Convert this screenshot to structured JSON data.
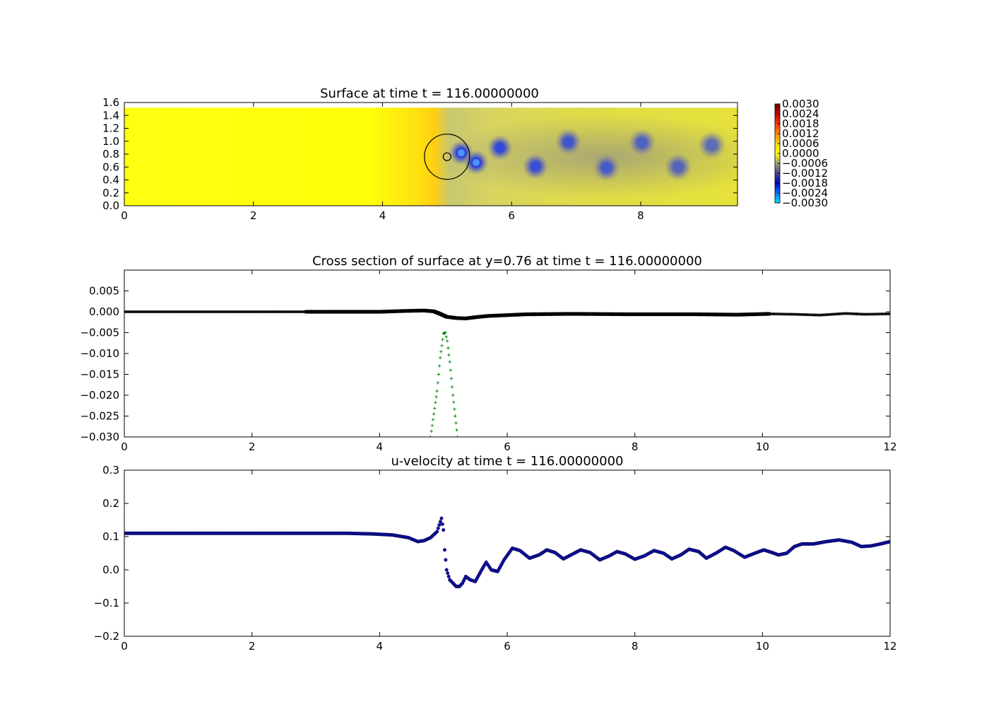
{
  "chart_data": [
    {
      "type": "heatmap",
      "title": "Surface at time t =   116.00000000",
      "xlim": [
        0,
        9.5
      ],
      "ylim": [
        0,
        1.6
      ],
      "domain_y_top": 1.52,
      "xticks": [
        0,
        2,
        4,
        6,
        8
      ],
      "xtick_labels": [
        "0",
        "2",
        "4",
        "6",
        "8"
      ],
      "yticks": [
        0.0,
        0.2,
        0.4,
        0.6,
        0.8,
        1.0,
        1.2,
        1.4,
        1.6
      ],
      "ytick_labels": [
        "0.0",
        "0.2",
        "0.4",
        "0.6",
        "0.8",
        "1.0",
        "1.2",
        "1.4",
        "1.6"
      ],
      "colormap": {
        "min": -0.003,
        "max": 0.003,
        "stops": [
          {
            "value": -0.003,
            "color": "#00e5ff"
          },
          {
            "value": -0.0024,
            "color": "#0070ff"
          },
          {
            "value": -0.0018,
            "color": "#0000cc"
          },
          {
            "value": -0.0012,
            "color": "#4a4a86"
          },
          {
            "value": -0.0006,
            "color": "#9c9c7e"
          },
          {
            "value": 0.0,
            "color": "#ffff00"
          },
          {
            "value": 0.0006,
            "color": "#ffd400"
          },
          {
            "value": 0.0012,
            "color": "#ff8800"
          },
          {
            "value": 0.0018,
            "color": "#ff3300"
          },
          {
            "value": 0.0024,
            "color": "#cc0000"
          },
          {
            "value": 0.003,
            "color": "#660000"
          }
        ],
        "tick_labels": [
          "0.0030",
          "0.0024",
          "0.0018",
          "0.0012",
          "0.0006",
          "0.0000",
          "−0.0006",
          "−0.0012",
          "−0.0018",
          "−0.0024",
          "−0.0030"
        ]
      },
      "vortices": [
        {
          "x": 5.22,
          "y": 0.82,
          "value": -0.0026
        },
        {
          "x": 5.45,
          "y": 0.67,
          "value": -0.0026
        },
        {
          "x": 5.82,
          "y": 0.9,
          "value": -0.0022
        },
        {
          "x": 6.37,
          "y": 0.61,
          "value": -0.002
        },
        {
          "x": 6.88,
          "y": 0.99,
          "value": -0.0017
        },
        {
          "x": 7.47,
          "y": 0.59,
          "value": -0.0015
        },
        {
          "x": 8.02,
          "y": 0.98,
          "value": -0.0013
        },
        {
          "x": 8.58,
          "y": 0.6,
          "value": -0.0012
        },
        {
          "x": 9.1,
          "y": 0.94,
          "value": -0.0011
        }
      ],
      "cylinder": {
        "x": 5.0,
        "y": 0.76,
        "radius": 0.35
      },
      "inner_marker": {
        "x": 5.0,
        "y": 0.76,
        "radius": 0.06
      }
    },
    {
      "type": "line",
      "title": "Cross section of surface at y=0.76 at time t =   116.00000000",
      "xlim": [
        0,
        12
      ],
      "ylim": [
        -0.03,
        0.01
      ],
      "xticks": [
        0,
        2,
        4,
        6,
        8,
        10,
        12
      ],
      "xtick_labels": [
        "0",
        "2",
        "4",
        "6",
        "8",
        "10",
        "12"
      ],
      "yticks": [
        -0.03,
        -0.025,
        -0.02,
        -0.015,
        -0.01,
        -0.005,
        0.0,
        0.005
      ],
      "ytick_labels": [
        "−0.030",
        "−0.025",
        "−0.020",
        "−0.015",
        "−0.010",
        "−0.005",
        "0.000",
        "0.005"
      ],
      "series": [
        {
          "color": "#000000",
          "marker": "x",
          "points": [
            [
              0,
              0.0
            ],
            [
              1,
              0.0
            ],
            [
              2,
              0.0
            ],
            [
              2.85,
              0.0
            ],
            [
              3.5,
              0.0
            ],
            [
              4.0,
              0.0
            ],
            [
              4.4,
              0.0002
            ],
            [
              4.7,
              0.0003
            ],
            [
              4.85,
              0.0001
            ],
            [
              4.95,
              -0.0005
            ],
            [
              5.05,
              -0.0012
            ],
            [
              5.2,
              -0.0015
            ],
            [
              5.35,
              -0.0016
            ],
            [
              5.5,
              -0.0013
            ],
            [
              5.7,
              -0.001
            ],
            [
              6.0,
              -0.0008
            ],
            [
              6.3,
              -0.0006
            ],
            [
              7.0,
              -0.0005
            ],
            [
              8.0,
              -0.0006
            ],
            [
              9.0,
              -0.0006
            ],
            [
              9.6,
              -0.0007
            ],
            [
              10.1,
              -0.0005
            ],
            [
              10.5,
              -0.0006
            ],
            [
              10.9,
              -0.0008
            ],
            [
              11.3,
              -0.0004
            ],
            [
              11.6,
              -0.0006
            ],
            [
              12,
              -0.0005
            ]
          ]
        },
        {
          "color": "#008000",
          "marker": "+",
          "points": [
            [
              4.8,
              -0.03
            ],
            [
              4.9,
              -0.019
            ],
            [
              4.95,
              -0.011
            ],
            [
              5.0,
              -0.0052
            ],
            [
              5.03,
              -0.005
            ],
            [
              5.06,
              -0.007
            ],
            [
              5.1,
              -0.012
            ],
            [
              5.15,
              -0.02
            ],
            [
              5.22,
              -0.03
            ]
          ]
        }
      ]
    },
    {
      "type": "scatter",
      "title": "u-velocity at time t =   116.00000000",
      "xlim": [
        0,
        12
      ],
      "ylim": [
        -0.2,
        0.3
      ],
      "xticks": [
        0,
        2,
        4,
        6,
        8,
        10,
        12
      ],
      "xtick_labels": [
        "0",
        "2",
        "4",
        "6",
        "8",
        "10",
        "12"
      ],
      "yticks": [
        -0.2,
        -0.1,
        0.0,
        0.1,
        0.2,
        0.3
      ],
      "ytick_labels": [
        "−0.2",
        "−0.1",
        "0.0",
        "0.1",
        "0.2",
        "0.3"
      ],
      "series": [
        {
          "color": "#1010a0",
          "marker": "o",
          "points": [
            [
              0,
              0.11
            ],
            [
              2,
              0.11
            ],
            [
              3.5,
              0.11
            ],
            [
              3.9,
              0.108
            ],
            [
              4.2,
              0.105
            ],
            [
              4.45,
              0.097
            ],
            [
              4.6,
              0.085
            ],
            [
              4.7,
              0.088
            ],
            [
              4.8,
              0.097
            ],
            [
              4.9,
              0.115
            ],
            [
              4.97,
              0.155
            ],
            [
              5.0,
              0.12
            ],
            [
              5.02,
              0.06
            ],
            [
              5.05,
              0.0
            ],
            [
              5.1,
              -0.03
            ],
            [
              5.2,
              -0.05
            ],
            [
              5.25,
              -0.05
            ],
            [
              5.3,
              -0.04
            ],
            [
              5.35,
              -0.02
            ],
            [
              5.42,
              -0.03
            ],
            [
              5.5,
              -0.035
            ],
            [
              5.6,
              0.0
            ],
            [
              5.67,
              0.023
            ],
            [
              5.75,
              0.0
            ],
            [
              5.85,
              -0.005
            ],
            [
              5.95,
              0.03
            ],
            [
              6.08,
              0.065
            ],
            [
              6.2,
              0.058
            ],
            [
              6.35,
              0.035
            ],
            [
              6.5,
              0.045
            ],
            [
              6.62,
              0.06
            ],
            [
              6.75,
              0.052
            ],
            [
              6.88,
              0.033
            ],
            [
              7.0,
              0.045
            ],
            [
              7.15,
              0.06
            ],
            [
              7.3,
              0.052
            ],
            [
              7.45,
              0.03
            ],
            [
              7.6,
              0.042
            ],
            [
              7.72,
              0.055
            ],
            [
              7.85,
              0.048
            ],
            [
              8.0,
              0.032
            ],
            [
              8.15,
              0.042
            ],
            [
              8.3,
              0.058
            ],
            [
              8.45,
              0.05
            ],
            [
              8.58,
              0.033
            ],
            [
              8.72,
              0.045
            ],
            [
              8.85,
              0.062
            ],
            [
              9.0,
              0.055
            ],
            [
              9.12,
              0.035
            ],
            [
              9.27,
              0.05
            ],
            [
              9.42,
              0.068
            ],
            [
              9.55,
              0.058
            ],
            [
              9.72,
              0.038
            ],
            [
              9.88,
              0.05
            ],
            [
              10.02,
              0.06
            ],
            [
              10.15,
              0.052
            ],
            [
              10.25,
              0.045
            ],
            [
              10.38,
              0.05
            ],
            [
              10.5,
              0.07
            ],
            [
              10.62,
              0.078
            ],
            [
              10.8,
              0.078
            ],
            [
              11.0,
              0.085
            ],
            [
              11.2,
              0.09
            ],
            [
              11.4,
              0.083
            ],
            [
              11.55,
              0.07
            ],
            [
              11.7,
              0.072
            ],
            [
              11.85,
              0.078
            ],
            [
              12.0,
              0.085
            ]
          ]
        }
      ]
    }
  ]
}
